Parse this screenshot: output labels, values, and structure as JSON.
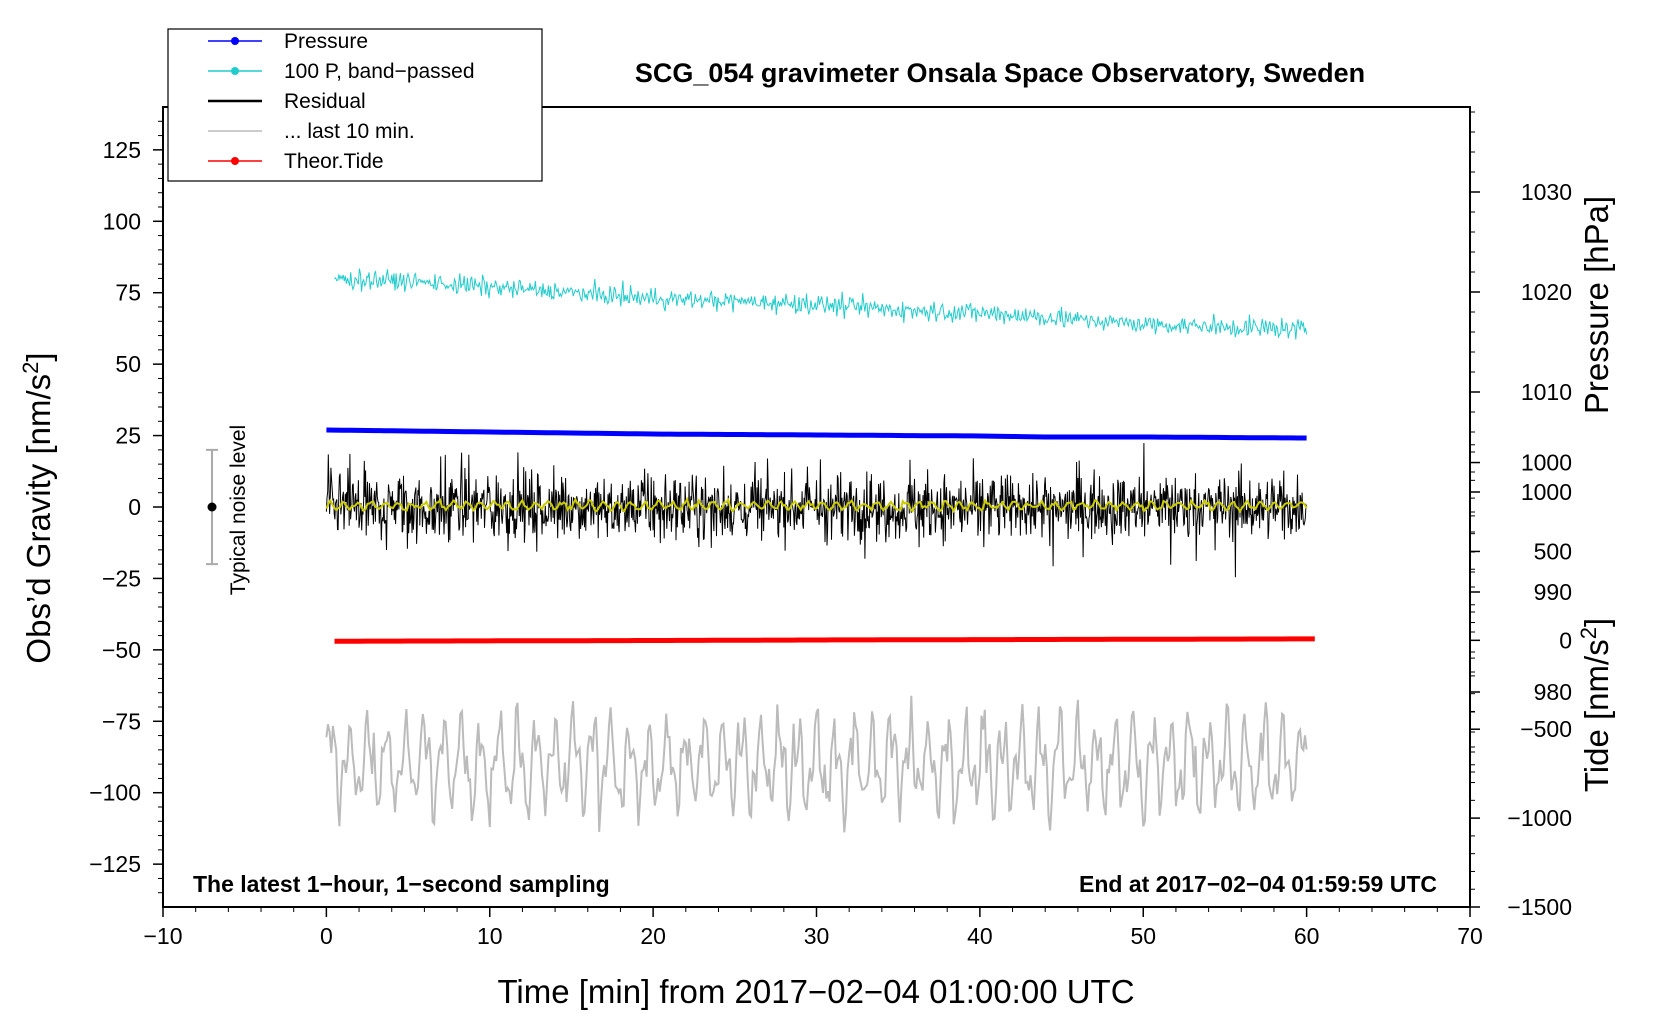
{
  "chart_data": {
    "type": "line",
    "title": "SCG_054 gravimeter Onsala Space Observatory, Sweden",
    "xlabel": "Time [min] from 2017−02−04 01:00:00 UTC",
    "ylabel_left": "Obs’d Gravity [nm/s²]",
    "ylabel_right_top": "Pressure [hPa]",
    "ylabel_right_bottom": "Tide [nm/s²]",
    "xlim": [
      -10,
      70
    ],
    "ylim_left": [
      -140,
      140
    ],
    "ylim_pressure": [
      958.5,
      1038.5
    ],
    "ylim_tide": [
      -1500,
      3000
    ],
    "x_ticks": [
      -10,
      0,
      10,
      20,
      30,
      40,
      50,
      60,
      70
    ],
    "x_tick_labels": [
      "−10",
      "0",
      "10",
      "20",
      "30",
      "40",
      "50",
      "60",
      "70"
    ],
    "y_left_ticks": [
      125,
      100,
      75,
      50,
      25,
      0,
      -25,
      -50,
      -75,
      -100,
      -125
    ],
    "y_left_tick_labels": [
      "125",
      "100",
      "75",
      "50",
      "25",
      "0",
      "−25",
      "−50",
      "−75",
      "−100",
      "−125"
    ],
    "pressure_ticks": [
      1030,
      1020,
      1010,
      1000,
      990,
      980
    ],
    "pressure_tick_labels": [
      "1030",
      "1020",
      "1010",
      "1000",
      "990",
      "980"
    ],
    "tide_ticks": [
      1000,
      500,
      0,
      -500,
      -1000,
      -1500
    ],
    "tide_tick_labels": [
      "1000",
      "500",
      "0",
      "−500",
      "−1000",
      "−1500"
    ],
    "legend": [
      {
        "label": "Pressure",
        "color": "#0000ff",
        "marker": true
      },
      {
        "label": "100 P, band−passed",
        "color": "#22cccc",
        "marker": true
      },
      {
        "label": "Residual",
        "color": "#000000",
        "marker": false
      },
      {
        "label": "... last 10 min.",
        "color": "#bbbbbb",
        "marker": false
      },
      {
        "label": "Theor.Tide",
        "color": "#ff0000",
        "marker": true
      }
    ],
    "series": [
      {
        "name": "Pressure",
        "color": "#0000ff",
        "x": [
          0,
          10,
          20,
          30,
          40,
          44,
          50,
          60
        ],
        "values_hPa": [
          1006.2,
          1006.0,
          1005.8,
          1005.7,
          1005.6,
          1005.5,
          1005.5,
          1005.4
        ]
      },
      {
        "name": "100 P, band−passed",
        "color": "#22cccc",
        "x": [
          0,
          5,
          10,
          15,
          20,
          25,
          30,
          35,
          40,
          45,
          50,
          55,
          60
        ],
        "trend_nm_s2": [
          80,
          79,
          77,
          75,
          73,
          72,
          71,
          69,
          68,
          66,
          64,
          63,
          62
        ],
        "noise_amplitude": 3
      },
      {
        "name": "Residual",
        "color": "#000000",
        "x_range": [
          0,
          60
        ],
        "mean": 0,
        "typical_range": [
          -20,
          25
        ]
      },
      {
        "name": "... last 10 min.",
        "color": "#bbbbbb",
        "x_range": [
          0,
          60
        ],
        "trend_nm_s2": -90,
        "typical_range": [
          -118,
          -58
        ]
      },
      {
        "name": "Theor.Tide",
        "color": "#ff0000",
        "x": [
          0,
          10,
          20,
          30,
          40,
          50,
          60
        ],
        "values_nm_s2": [
          -5,
          -3,
          -1,
          2,
          4,
          6,
          8
        ]
      },
      {
        "name": "Residual smoothed",
        "color": "#cccc00",
        "x_range": [
          0,
          60
        ],
        "mean": 0.5
      }
    ],
    "noise_indicator": {
      "x": -7,
      "center": 0,
      "range": [
        -20,
        20
      ],
      "label": "Typical noise level"
    },
    "footer_left": "The latest 1−hour, 1−second sampling",
    "footer_right": "End at 2017−02−04 01:59:59 UTC"
  }
}
